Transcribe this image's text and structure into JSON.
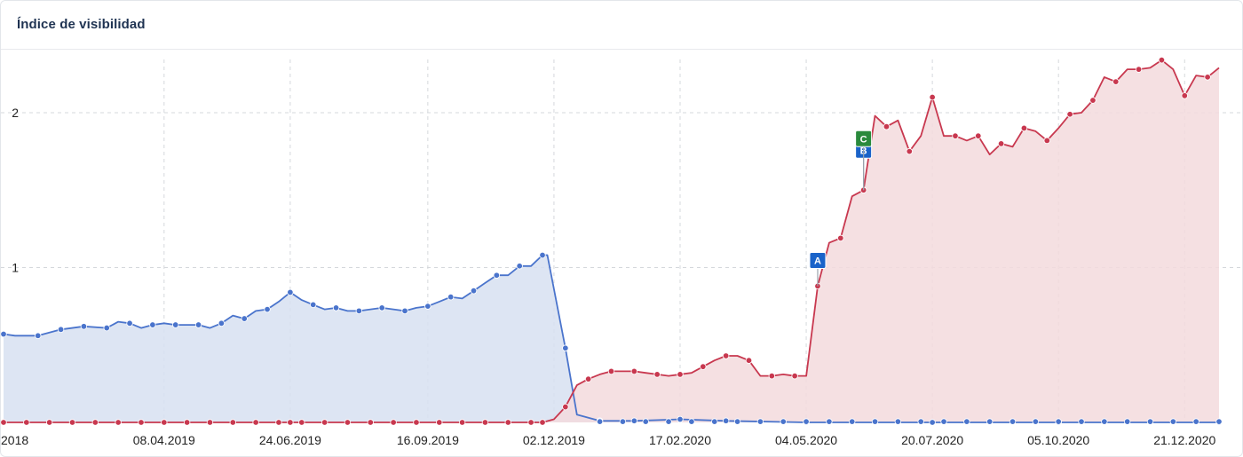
{
  "card": {
    "title": "Índice de visibilidad"
  },
  "chart_data": {
    "type": "area",
    "x_range": [
      "2018-12-31",
      "2021-01-11"
    ],
    "ylim": [
      0,
      2.3
    ],
    "yticks": [
      1,
      2
    ],
    "grid": true,
    "xticks": [
      {
        "date": "2018-12-31",
        "label": "2018"
      },
      {
        "date": "2019-04-08",
        "label": "08.04.2019"
      },
      {
        "date": "2019-06-24",
        "label": "24.06.2019"
      },
      {
        "date": "2019-09-16",
        "label": "16.09.2019"
      },
      {
        "date": "2019-12-02",
        "label": "02.12.2019"
      },
      {
        "date": "2020-02-17",
        "label": "17.02.2020"
      },
      {
        "date": "2020-05-04",
        "label": "04.05.2020"
      },
      {
        "date": "2020-07-20",
        "label": "20.07.2020"
      },
      {
        "date": "2020-10-05",
        "label": "05.10.2020"
      },
      {
        "date": "2020-12-21",
        "label": "21.12.2020"
      }
    ],
    "colors": {
      "blue_line": "#4a74cc",
      "blue_fill": "#d7e0f1",
      "red_line": "#c8384f",
      "red_fill": "#f3dadd",
      "marker_blue": "#1a63c9",
      "marker_green": "#2a8a3c"
    },
    "series": [
      {
        "color": "blue",
        "points": [
          [
            "2018-12-31",
            0.57
          ],
          [
            "2019-01-07",
            0.56
          ],
          [
            "2019-01-21",
            0.56
          ],
          [
            "2019-02-04",
            0.6
          ],
          [
            "2019-02-18",
            0.62
          ],
          [
            "2019-03-04",
            0.61
          ],
          [
            "2019-03-11",
            0.65
          ],
          [
            "2019-03-18",
            0.64
          ],
          [
            "2019-03-25",
            0.61
          ],
          [
            "2019-04-01",
            0.63
          ],
          [
            "2019-04-08",
            0.64
          ],
          [
            "2019-04-15",
            0.63
          ],
          [
            "2019-04-22",
            0.63
          ],
          [
            "2019-04-29",
            0.63
          ],
          [
            "2019-05-06",
            0.61
          ],
          [
            "2019-05-13",
            0.64
          ],
          [
            "2019-05-20",
            0.69
          ],
          [
            "2019-05-27",
            0.67
          ],
          [
            "2019-06-03",
            0.72
          ],
          [
            "2019-06-10",
            0.73
          ],
          [
            "2019-06-17",
            0.78
          ],
          [
            "2019-06-24",
            0.84
          ],
          [
            "2019-07-01",
            0.79
          ],
          [
            "2019-07-08",
            0.76
          ],
          [
            "2019-07-15",
            0.73
          ],
          [
            "2019-07-22",
            0.74
          ],
          [
            "2019-07-29",
            0.72
          ],
          [
            "2019-08-05",
            0.72
          ],
          [
            "2019-08-12",
            0.73
          ],
          [
            "2019-08-19",
            0.74
          ],
          [
            "2019-08-26",
            0.73
          ],
          [
            "2019-09-02",
            0.72
          ],
          [
            "2019-09-09",
            0.74
          ],
          [
            "2019-09-16",
            0.75
          ],
          [
            "2019-09-23",
            0.78
          ],
          [
            "2019-09-30",
            0.81
          ],
          [
            "2019-10-07",
            0.8
          ],
          [
            "2019-10-14",
            0.85
          ],
          [
            "2019-10-21",
            0.9
          ],
          [
            "2019-10-28",
            0.95
          ],
          [
            "2019-11-04",
            0.95
          ],
          [
            "2019-11-11",
            1.01
          ],
          [
            "2019-11-18",
            1.01
          ],
          [
            "2019-11-25",
            1.08
          ],
          [
            "2019-11-28",
            1.08
          ],
          [
            "2019-12-09",
            0.48
          ],
          [
            "2019-12-16",
            0.05
          ],
          [
            "2019-12-30",
            0.01
          ],
          [
            "2020-01-20",
            0.01
          ],
          [
            "2020-02-17",
            0.02
          ],
          [
            "2020-03-16",
            0.01
          ],
          [
            "2020-05-04",
            0.0
          ],
          [
            "2020-07-20",
            0.0
          ],
          [
            "2020-10-05",
            0.0
          ],
          [
            "2021-01-11",
            0.0
          ]
        ]
      },
      {
        "color": "red",
        "points": [
          [
            "2018-12-31",
            0.0
          ],
          [
            "2019-06-24",
            0.0
          ],
          [
            "2019-11-25",
            0.0
          ],
          [
            "2019-12-02",
            0.02
          ],
          [
            "2019-12-09",
            0.1
          ],
          [
            "2019-12-16",
            0.24
          ],
          [
            "2019-12-23",
            0.28
          ],
          [
            "2019-12-30",
            0.31
          ],
          [
            "2020-01-06",
            0.33
          ],
          [
            "2020-01-13",
            0.33
          ],
          [
            "2020-01-20",
            0.33
          ],
          [
            "2020-01-27",
            0.32
          ],
          [
            "2020-02-03",
            0.31
          ],
          [
            "2020-02-10",
            0.3
          ],
          [
            "2020-02-17",
            0.31
          ],
          [
            "2020-02-24",
            0.32
          ],
          [
            "2020-03-02",
            0.36
          ],
          [
            "2020-03-09",
            0.4
          ],
          [
            "2020-03-16",
            0.43
          ],
          [
            "2020-03-23",
            0.43
          ],
          [
            "2020-03-30",
            0.4
          ],
          [
            "2020-04-06",
            0.3
          ],
          [
            "2020-04-13",
            0.3
          ],
          [
            "2020-04-20",
            0.31
          ],
          [
            "2020-04-27",
            0.3
          ],
          [
            "2020-05-04",
            0.3
          ],
          [
            "2020-05-11",
            0.88
          ],
          [
            "2020-05-18",
            1.16
          ],
          [
            "2020-05-25",
            1.19
          ],
          [
            "2020-06-01",
            1.46
          ],
          [
            "2020-06-08",
            1.5
          ],
          [
            "2020-06-15",
            1.98
          ],
          [
            "2020-06-22",
            1.91
          ],
          [
            "2020-06-29",
            1.95
          ],
          [
            "2020-07-06",
            1.75
          ],
          [
            "2020-07-13",
            1.85
          ],
          [
            "2020-07-20",
            2.1
          ],
          [
            "2020-07-27",
            1.85
          ],
          [
            "2020-08-03",
            1.85
          ],
          [
            "2020-08-10",
            1.82
          ],
          [
            "2020-08-17",
            1.85
          ],
          [
            "2020-08-24",
            1.73
          ],
          [
            "2020-08-31",
            1.8
          ],
          [
            "2020-09-07",
            1.78
          ],
          [
            "2020-09-14",
            1.9
          ],
          [
            "2020-09-21",
            1.88
          ],
          [
            "2020-09-28",
            1.82
          ],
          [
            "2020-10-05",
            1.9
          ],
          [
            "2020-10-12",
            1.99
          ],
          [
            "2020-10-19",
            2.0
          ],
          [
            "2020-10-26",
            2.08
          ],
          [
            "2020-11-02",
            2.23
          ],
          [
            "2020-11-09",
            2.2
          ],
          [
            "2020-11-16",
            2.28
          ],
          [
            "2020-11-23",
            2.28
          ],
          [
            "2020-11-30",
            2.29
          ],
          [
            "2020-12-07",
            2.34
          ],
          [
            "2020-12-14",
            2.28
          ],
          [
            "2020-12-21",
            2.11
          ],
          [
            "2020-12-28",
            2.24
          ],
          [
            "2021-01-04",
            2.23
          ],
          [
            "2021-01-11",
            2.29
          ]
        ]
      }
    ],
    "markers": [
      {
        "label": "A",
        "date": "2020-05-11",
        "value": 0.88,
        "color": "blue"
      },
      {
        "label": "B",
        "date": "2020-06-08",
        "value": 1.5,
        "color": "blue"
      },
      {
        "label": "C",
        "date": "2020-06-08",
        "value": 1.5,
        "color": "green"
      }
    ]
  }
}
